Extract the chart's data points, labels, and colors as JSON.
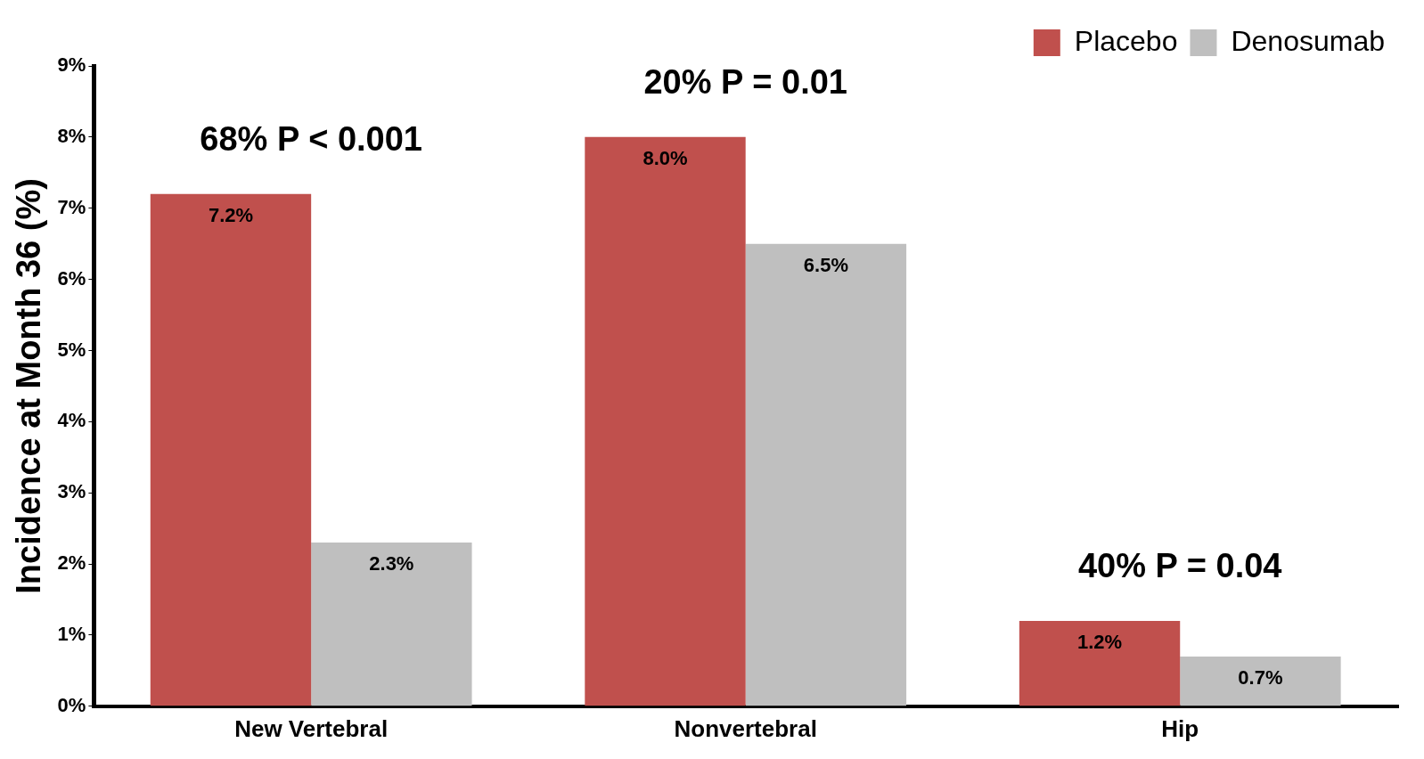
{
  "chart_data": {
    "type": "bar",
    "ylabel": "Incidence at Month 36 (%)",
    "categories": [
      "New Vertebral",
      "Nonvertebral",
      "Hip"
    ],
    "series": [
      {
        "name": "Placebo",
        "color": "#c0504d",
        "values": [
          7.2,
          8.0,
          1.2
        ],
        "value_labels": [
          "7.2%",
          "8.0%",
          "1.2%"
        ]
      },
      {
        "name": "Denosumab",
        "color": "#bfbfbf",
        "values": [
          2.3,
          6.5,
          0.7
        ],
        "value_labels": [
          "2.3%",
          "6.5%",
          "0.7%"
        ]
      }
    ],
    "ylim": [
      0,
      9
    ],
    "yticks": [
      {
        "value": 0,
        "label": "0%"
      },
      {
        "value": 1,
        "label": "1%"
      },
      {
        "value": 2,
        "label": "2%"
      },
      {
        "value": 3,
        "label": "3%"
      },
      {
        "value": 4,
        "label": "4%"
      },
      {
        "value": 5,
        "label": "5%"
      },
      {
        "value": 6,
        "label": "6%"
      },
      {
        "value": 7,
        "label": "7%"
      },
      {
        "value": 8,
        "label": "8%"
      },
      {
        "value": 9,
        "label": "9%"
      }
    ],
    "grid": false,
    "legend": "top right",
    "annotations": [
      "68% P < 0.001",
      "20% P = 0.01",
      "40% P = 0.04"
    ]
  }
}
